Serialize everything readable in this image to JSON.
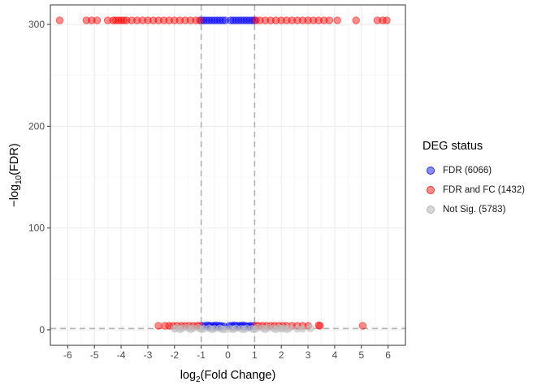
{
  "chart_data": {
    "type": "scatter",
    "xlabel_main": "log",
    "xlabel_sub": "2",
    "xlabel_rest": "(Fold Change)",
    "ylabel_pre": "−log",
    "ylabel_sub": "10",
    "ylabel_rest": "(FDR)",
    "xlim": [
      -6.65,
      6.65
    ],
    "ylim": [
      -15.2,
      319.2
    ],
    "x_ticks": [
      -6,
      -5,
      -4,
      -3,
      -2,
      -1,
      0,
      1,
      2,
      3,
      4,
      5,
      6
    ],
    "x_tick_labels": [
      "-6",
      "-5",
      "-4",
      "-3",
      "-2",
      "-1",
      "0",
      "1",
      "2",
      "3",
      "4",
      "5",
      "6"
    ],
    "y_ticks": [
      0,
      100,
      200,
      300
    ],
    "y_tick_labels": [
      "0",
      "100",
      "200",
      "300"
    ],
    "grid": true,
    "reference_lines": {
      "vertical": [
        -1,
        1
      ],
      "horizontal": [
        1.3
      ]
    },
    "legend_placement": "right",
    "legend": {
      "title": "DEG status",
      "items": [
        {
          "label": "FDR (6066)",
          "color": "#0000ff"
        },
        {
          "label": "FDR and FC (1432)",
          "color": "#ff0000"
        },
        {
          "label": "Not Sig. (5783)",
          "color": "#bebebe"
        }
      ]
    },
    "series": [
      {
        "name": "FDR (6066)",
        "color": "#0000ff",
        "points": [
          [
            -0.99,
            304
          ],
          [
            -0.9,
            304
          ],
          [
            -0.8,
            304
          ],
          [
            -0.7,
            304
          ],
          [
            -0.6,
            304
          ],
          [
            -0.5,
            304
          ],
          [
            -0.4,
            304
          ],
          [
            -0.3,
            304
          ],
          [
            -0.2,
            304
          ],
          [
            -0.1,
            304
          ],
          [
            0.1,
            304
          ],
          [
            0.2,
            304
          ],
          [
            0.3,
            304
          ],
          [
            0.4,
            304
          ],
          [
            0.5,
            304
          ],
          [
            0.6,
            304
          ],
          [
            0.7,
            304
          ],
          [
            0.8,
            304
          ],
          [
            0.9,
            304
          ],
          [
            0.99,
            304
          ],
          [
            -0.95,
            4
          ],
          [
            -0.85,
            4
          ],
          [
            -0.75,
            4.5
          ],
          [
            -0.65,
            4
          ],
          [
            -0.55,
            4
          ],
          [
            -0.45,
            4.5
          ],
          [
            -0.35,
            4
          ],
          [
            -0.25,
            4
          ],
          [
            -0.15,
            3.5
          ],
          [
            0.05,
            4
          ],
          [
            0.15,
            4
          ],
          [
            0.25,
            4.5
          ],
          [
            0.35,
            4
          ],
          [
            0.45,
            4
          ],
          [
            0.55,
            4.5
          ],
          [
            0.65,
            4
          ],
          [
            0.75,
            3.5
          ],
          [
            0.85,
            4
          ],
          [
            0.95,
            4
          ],
          [
            -0.7,
            3
          ],
          [
            -0.5,
            3
          ],
          [
            -0.3,
            3
          ],
          [
            0.2,
            3
          ],
          [
            0.4,
            3
          ],
          [
            0.6,
            3
          ],
          [
            0.8,
            3
          ]
        ]
      },
      {
        "name": "FDR and FC (1432)",
        "color": "#ff0000",
        "points": [
          [
            -6.3,
            304
          ],
          [
            -5.3,
            304
          ],
          [
            -5.1,
            304
          ],
          [
            -4.9,
            304
          ],
          [
            -4.5,
            304
          ],
          [
            -4.3,
            304
          ],
          [
            -4.2,
            304
          ],
          [
            -4.1,
            304
          ],
          [
            -4.0,
            304
          ],
          [
            -3.9,
            304
          ],
          [
            -3.8,
            304
          ],
          [
            -3.6,
            304
          ],
          [
            -3.4,
            304
          ],
          [
            -3.2,
            304
          ],
          [
            -3.0,
            304
          ],
          [
            -2.8,
            304
          ],
          [
            -2.6,
            304
          ],
          [
            -2.4,
            304
          ],
          [
            -2.2,
            304
          ],
          [
            -2.0,
            304
          ],
          [
            -1.8,
            304
          ],
          [
            -1.6,
            304
          ],
          [
            -1.4,
            304
          ],
          [
            -1.2,
            304
          ],
          [
            -1.05,
            304
          ],
          [
            1.05,
            304
          ],
          [
            1.2,
            304
          ],
          [
            1.4,
            304
          ],
          [
            1.6,
            304
          ],
          [
            1.8,
            304
          ],
          [
            2.0,
            304
          ],
          [
            2.2,
            304
          ],
          [
            2.4,
            304
          ],
          [
            2.6,
            304
          ],
          [
            2.8,
            304
          ],
          [
            3.0,
            304
          ],
          [
            3.2,
            304
          ],
          [
            3.4,
            304
          ],
          [
            3.6,
            304
          ],
          [
            3.8,
            304
          ],
          [
            4.1,
            304
          ],
          [
            4.8,
            304
          ],
          [
            5.6,
            304
          ],
          [
            5.8,
            304
          ],
          [
            5.95,
            304
          ],
          [
            -2.6,
            4
          ],
          [
            -2.35,
            4
          ],
          [
            -2.2,
            4
          ],
          [
            -2.05,
            4
          ],
          [
            -1.9,
            4
          ],
          [
            -1.75,
            4
          ],
          [
            -1.6,
            4
          ],
          [
            -1.45,
            4
          ],
          [
            -1.3,
            4
          ],
          [
            -1.15,
            4
          ],
          [
            -1.05,
            4
          ],
          [
            1.05,
            4
          ],
          [
            1.15,
            4
          ],
          [
            1.3,
            4
          ],
          [
            1.45,
            4
          ],
          [
            1.6,
            4
          ],
          [
            1.75,
            4
          ],
          [
            1.9,
            4
          ],
          [
            2.05,
            4
          ],
          [
            2.2,
            4
          ],
          [
            2.4,
            4
          ],
          [
            2.6,
            4
          ],
          [
            2.8,
            4
          ],
          [
            3.0,
            4
          ],
          [
            3.4,
            4.5
          ],
          [
            3.45,
            4
          ],
          [
            5.05,
            4
          ]
        ]
      },
      {
        "name": "Not Sig. (5783)",
        "color": "#bebebe",
        "points": [
          [
            -1.9,
            2
          ],
          [
            -1.7,
            1.5
          ],
          [
            -1.5,
            2
          ],
          [
            -1.3,
            1.5
          ],
          [
            -1.1,
            2
          ],
          [
            -0.9,
            1
          ],
          [
            -0.7,
            1.5
          ],
          [
            -0.5,
            1
          ],
          [
            -0.3,
            1.5
          ],
          [
            -0.1,
            0.5
          ],
          [
            0.1,
            1
          ],
          [
            0.3,
            1.5
          ],
          [
            0.5,
            1
          ],
          [
            0.7,
            1.5
          ],
          [
            0.9,
            1
          ],
          [
            1.1,
            2
          ],
          [
            1.3,
            1.5
          ],
          [
            1.5,
            2
          ],
          [
            1.7,
            1.5
          ],
          [
            1.9,
            2
          ],
          [
            2.1,
            1.5
          ],
          [
            2.3,
            1.5
          ],
          [
            2.6,
            1
          ],
          [
            3.1,
            1.5
          ],
          [
            -1.8,
            0.5
          ],
          [
            -1.4,
            0.5
          ],
          [
            -1.0,
            0.5
          ],
          [
            -0.6,
            0.5
          ],
          [
            -0.2,
            0.5
          ],
          [
            0.2,
            0.5
          ],
          [
            0.6,
            0.5
          ],
          [
            1.0,
            0.5
          ],
          [
            1.4,
            0.5
          ],
          [
            1.8,
            0.5
          ],
          [
            2.2,
            0.5
          ],
          [
            2.0,
            1
          ],
          [
            -2.0,
            1
          ],
          [
            2.8,
            1
          ]
        ]
      }
    ]
  }
}
